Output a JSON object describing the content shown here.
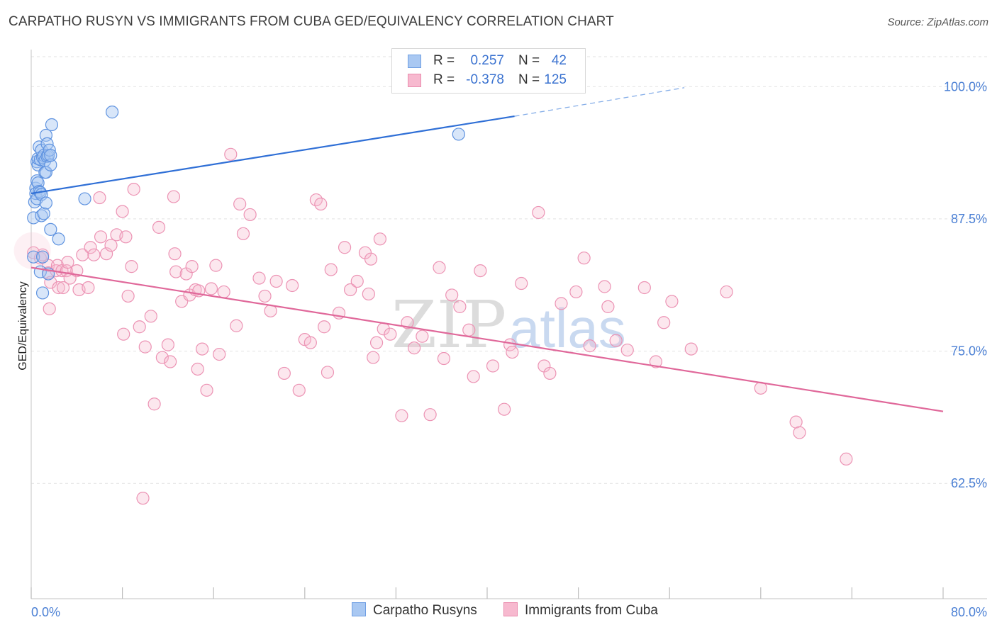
{
  "header": {
    "title": "CARPATHO RUSYN VS IMMIGRANTS FROM CUBA GED/EQUIVALENCY CORRELATION CHART",
    "source": "Source: ZipAtlas.com"
  },
  "legend_top": {
    "rows": [
      {
        "r_label": "R =",
        "r_value": "0.257",
        "n_label": "N =",
        "n_value": "42",
        "color": "#a9c8f2",
        "border": "#6f9fe3"
      },
      {
        "r_label": "R =",
        "r_value": "-0.378",
        "n_label": "N =",
        "n_value": "125",
        "color": "#f7b9cf",
        "border": "#ea8cae"
      }
    ]
  },
  "legend_bottom": {
    "items": [
      {
        "label": "Carpatho Rusyns",
        "color": "#a9c8f2",
        "border": "#6f9fe3"
      },
      {
        "label": "Immigrants from Cuba",
        "color": "#f7b9cf",
        "border": "#ea8cae"
      }
    ]
  },
  "watermark": {
    "zip": "ZIP",
    "atlas": "atlas"
  },
  "chart_data": {
    "type": "scatter",
    "title": "CARPATHO RUSYN VS IMMIGRANTS FROM CUBA GED/EQUIVALENCY CORRELATION CHART",
    "xlabel": "",
    "ylabel": "GED/Equivalency",
    "xlim": [
      0,
      80
    ],
    "ylim": [
      51.6,
      103.5
    ],
    "x_tick_labels": [
      "0.0%",
      "80.0%"
    ],
    "y_ticks": [
      62.5,
      75.0,
      87.5,
      100.0
    ],
    "y_tick_labels": [
      "62.5%",
      "75.0%",
      "87.5%",
      "100.0%"
    ],
    "grid": true,
    "legend_position": "top-center",
    "colors": {
      "blue": "#4a86e8",
      "pink": "#e8709b",
      "blue_line": "#2f6fd6",
      "pink_line": "#e0689a"
    },
    "series": [
      {
        "name": "Carpatho Rusyns",
        "color": "#4a86e8",
        "trend": {
          "x": [
            0,
            42.4
          ],
          "y": [
            89.9,
            97.2
          ],
          "dashed_to": [
            57.3,
            99.9
          ]
        },
        "points": [
          [
            0.2,
            87.6
          ],
          [
            0.2,
            83.9
          ],
          [
            0.3,
            89.1
          ],
          [
            0.4,
            90.4
          ],
          [
            0.4,
            89.9
          ],
          [
            0.5,
            89.4
          ],
          [
            0.5,
            91.1
          ],
          [
            0.5,
            92.9
          ],
          [
            0.6,
            92.6
          ],
          [
            0.6,
            93.2
          ],
          [
            0.6,
            90.9
          ],
          [
            0.7,
            94.3
          ],
          [
            0.7,
            90.1
          ],
          [
            0.8,
            90.0
          ],
          [
            0.8,
            82.5
          ],
          [
            0.8,
            93.1
          ],
          [
            0.9,
            94.0
          ],
          [
            0.9,
            89.8
          ],
          [
            0.9,
            87.8
          ],
          [
            1.0,
            83.9
          ],
          [
            1.0,
            80.5
          ],
          [
            1.0,
            93.3
          ],
          [
            1.1,
            88.0
          ],
          [
            1.1,
            93.5
          ],
          [
            1.2,
            91.9
          ],
          [
            1.2,
            93.0
          ],
          [
            1.3,
            89.0
          ],
          [
            1.3,
            91.9
          ],
          [
            1.3,
            95.4
          ],
          [
            1.4,
            93.4
          ],
          [
            1.4,
            94.6
          ],
          [
            1.5,
            93.5
          ],
          [
            1.5,
            82.3
          ],
          [
            1.6,
            94.0
          ],
          [
            1.7,
            92.6
          ],
          [
            1.7,
            86.5
          ],
          [
            1.7,
            93.5
          ],
          [
            1.8,
            96.4
          ],
          [
            2.4,
            85.6
          ],
          [
            4.7,
            89.4
          ],
          [
            7.1,
            97.6
          ],
          [
            37.5,
            95.5
          ]
        ]
      },
      {
        "name": "Immigrants from Cuba",
        "color": "#e8709b",
        "trend": {
          "x": [
            0,
            80
          ],
          "y": [
            82.9,
            69.3
          ]
        },
        "points": [
          [
            0.2,
            84.3
          ],
          [
            0.8,
            83.8
          ],
          [
            1.0,
            84.1
          ],
          [
            1.5,
            83.1
          ],
          [
            1.5,
            82.4
          ],
          [
            1.6,
            79.0
          ],
          [
            1.7,
            81.5
          ],
          [
            2.2,
            82.6
          ],
          [
            2.3,
            83.1
          ],
          [
            2.4,
            81.0
          ],
          [
            2.7,
            82.6
          ],
          [
            2.8,
            81.0
          ],
          [
            3.1,
            82.6
          ],
          [
            3.2,
            83.4
          ],
          [
            3.4,
            81.9
          ],
          [
            4.0,
            82.6
          ],
          [
            4.2,
            80.8
          ],
          [
            4.5,
            84.1
          ],
          [
            5.0,
            81.0
          ],
          [
            5.2,
            84.8
          ],
          [
            5.5,
            84.1
          ],
          [
            6.0,
            89.5
          ],
          [
            6.1,
            85.8
          ],
          [
            6.6,
            84.2
          ],
          [
            7.0,
            85.0
          ],
          [
            7.5,
            86.0
          ],
          [
            8.0,
            88.2
          ],
          [
            8.1,
            76.6
          ],
          [
            8.3,
            85.8
          ],
          [
            8.5,
            80.2
          ],
          [
            8.8,
            83.0
          ],
          [
            9.0,
            90.3
          ],
          [
            9.5,
            77.3
          ],
          [
            9.8,
            61.1
          ],
          [
            10.0,
            75.4
          ],
          [
            10.5,
            78.3
          ],
          [
            10.8,
            70.0
          ],
          [
            11.2,
            86.7
          ],
          [
            11.5,
            74.4
          ],
          [
            12.0,
            75.6
          ],
          [
            12.2,
            74.0
          ],
          [
            12.5,
            89.6
          ],
          [
            12.6,
            84.2
          ],
          [
            12.7,
            82.5
          ],
          [
            13.2,
            79.7
          ],
          [
            13.6,
            82.3
          ],
          [
            13.9,
            80.3
          ],
          [
            14.1,
            83.0
          ],
          [
            14.4,
            80.8
          ],
          [
            14.6,
            73.3
          ],
          [
            14.7,
            80.7
          ],
          [
            15.0,
            75.2
          ],
          [
            15.4,
            71.3
          ],
          [
            15.8,
            80.9
          ],
          [
            16.2,
            83.1
          ],
          [
            16.5,
            74.7
          ],
          [
            16.9,
            80.6
          ],
          [
            17.5,
            93.6
          ],
          [
            18.0,
            77.4
          ],
          [
            18.3,
            88.9
          ],
          [
            18.6,
            86.1
          ],
          [
            19.2,
            87.9
          ],
          [
            20.0,
            81.9
          ],
          [
            20.5,
            80.2
          ],
          [
            21.0,
            78.8
          ],
          [
            21.5,
            81.6
          ],
          [
            22.2,
            72.9
          ],
          [
            22.9,
            81.2
          ],
          [
            23.5,
            71.3
          ],
          [
            24.0,
            76.1
          ],
          [
            24.5,
            75.8
          ],
          [
            25.0,
            89.3
          ],
          [
            25.4,
            88.9
          ],
          [
            25.7,
            77.3
          ],
          [
            26.0,
            73.0
          ],
          [
            26.3,
            82.7
          ],
          [
            27.0,
            78.6
          ],
          [
            27.5,
            84.8
          ],
          [
            28.0,
            80.8
          ],
          [
            28.6,
            81.6
          ],
          [
            29.3,
            84.3
          ],
          [
            29.6,
            80.4
          ],
          [
            29.8,
            83.7
          ],
          [
            30.0,
            74.4
          ],
          [
            30.3,
            75.8
          ],
          [
            30.6,
            85.6
          ],
          [
            30.9,
            77.1
          ],
          [
            31.5,
            76.6
          ],
          [
            32.5,
            68.9
          ],
          [
            33.0,
            77.7
          ],
          [
            33.6,
            75.3
          ],
          [
            34.3,
            76.4
          ],
          [
            35.0,
            69.0
          ],
          [
            35.8,
            82.9
          ],
          [
            36.2,
            74.3
          ],
          [
            36.9,
            80.3
          ],
          [
            37.6,
            79.2
          ],
          [
            38.4,
            77.0
          ],
          [
            38.8,
            72.6
          ],
          [
            39.4,
            82.6
          ],
          [
            40.5,
            73.6
          ],
          [
            41.5,
            69.5
          ],
          [
            42.0,
            75.6
          ],
          [
            42.2,
            74.9
          ],
          [
            43.0,
            81.4
          ],
          [
            44.5,
            88.1
          ],
          [
            45.0,
            73.6
          ],
          [
            45.5,
            72.9
          ],
          [
            46.5,
            79.5
          ],
          [
            47.8,
            80.6
          ],
          [
            48.5,
            83.8
          ],
          [
            49.0,
            75.5
          ],
          [
            50.3,
            81.1
          ],
          [
            50.6,
            79.2
          ],
          [
            51.3,
            76.0
          ],
          [
            52.3,
            75.1
          ],
          [
            53.8,
            81.0
          ],
          [
            54.8,
            74.0
          ],
          [
            55.5,
            77.7
          ],
          [
            56.2,
            79.7
          ],
          [
            57.9,
            75.2
          ],
          [
            61.0,
            80.6
          ],
          [
            64.0,
            71.5
          ],
          [
            67.1,
            68.3
          ],
          [
            67.4,
            67.3
          ],
          [
            71.5,
            64.8
          ]
        ]
      }
    ]
  }
}
